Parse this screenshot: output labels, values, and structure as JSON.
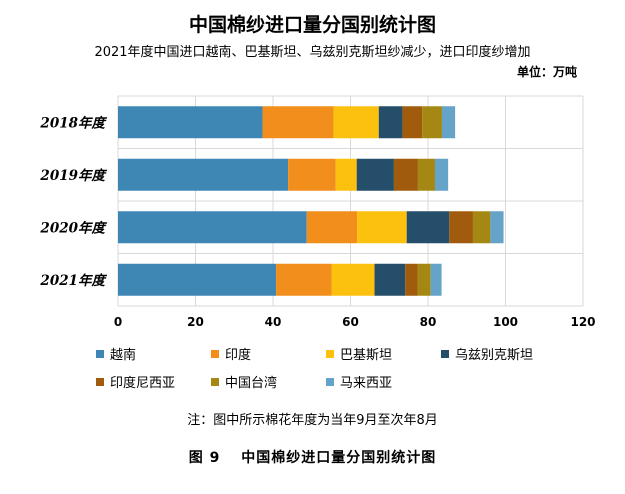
{
  "chart_data": {
    "type": "bar",
    "orientation": "horizontal",
    "stacked": true,
    "title": "中国棉纱进口量分国别统计图",
    "subtitle": "2021年度中国进口越南、巴基斯坦、乌兹别克斯坦纱减少，进口印度纱增加",
    "unit_label": "单位：万吨",
    "categories": [
      "2018年度",
      "2019年度",
      "2020年度",
      "2021年度"
    ],
    "xlim": [
      0,
      120
    ],
    "xticks": [
      "0",
      "20",
      "40",
      "60",
      "80",
      "100",
      "120"
    ],
    "grid": true,
    "legend_position": "bottom",
    "series": [
      {
        "name": "越南",
        "color": "#3e87b5",
        "values": [
          37.3,
          43.9,
          48.7,
          40.8
        ]
      },
      {
        "name": "印度",
        "color": "#f28e1c",
        "values": [
          18.3,
          12.3,
          13.0,
          14.3
        ]
      },
      {
        "name": "巴基斯坦",
        "color": "#fcc10f",
        "values": [
          11.7,
          5.4,
          12.8,
          11.1
        ]
      },
      {
        "name": "乌兹别克斯坦",
        "color": "#254e6b",
        "values": [
          6.1,
          9.6,
          11.0,
          7.9
        ]
      },
      {
        "name": "印度尼西亚",
        "color": "#a05c0c",
        "values": [
          5.1,
          6.2,
          6.1,
          3.2
        ]
      },
      {
        "name": "中国台湾",
        "color": "#a58813",
        "values": [
          5.1,
          4.4,
          4.5,
          3.4
        ]
      },
      {
        "name": "马来西亚",
        "color": "#66a3c9",
        "values": [
          3.4,
          3.4,
          3.4,
          2.8
        ]
      }
    ]
  },
  "note": "注：图中所示棉花年度为当年9月至次年8月",
  "caption": "图 9　 中国棉纱进口量分国别统计图"
}
